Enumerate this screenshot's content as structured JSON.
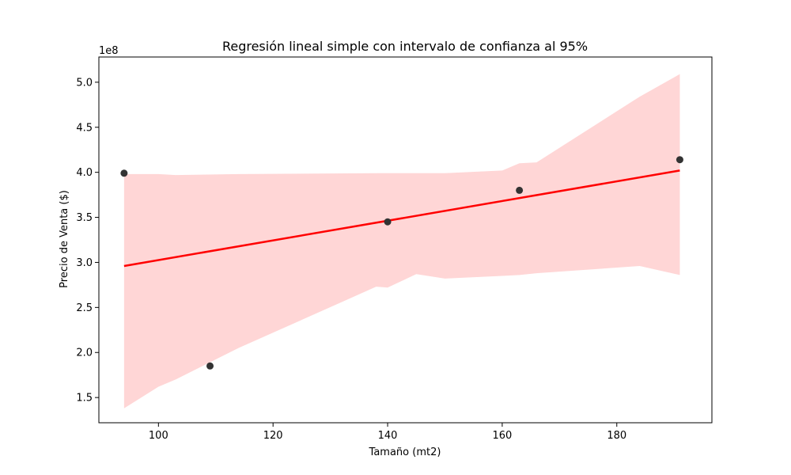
{
  "chart_data": {
    "type": "scatter",
    "title": "Regresión lineal simple con intervalo de confianza al 95%",
    "xlabel": "Tamaño (mt2)",
    "ylabel": "Precio de Venta ($)",
    "y_offset_label": "1e8",
    "xlim": [
      89.6,
      196.6
    ],
    "ylim": [
      1.22,
      5.28
    ],
    "x_ticks": [
      100,
      120,
      140,
      160,
      180
    ],
    "x_tick_labels": [
      "100",
      "120",
      "140",
      "160",
      "180"
    ],
    "y_ticks": [
      1.5,
      2.0,
      2.5,
      3.0,
      3.5,
      4.0,
      4.5,
      5.0
    ],
    "y_tick_labels": [
      "1.5",
      "2.0",
      "2.5",
      "3.0",
      "3.5",
      "4.0",
      "4.5",
      "5.0"
    ],
    "grid": false,
    "scatter_points": {
      "x": [
        94,
        109,
        140,
        163,
        191
      ],
      "y": [
        3.99,
        1.85,
        3.45,
        3.8,
        4.14
      ]
    },
    "regression_line": {
      "x": [
        94,
        191
      ],
      "y": [
        2.96,
        4.02
      ]
    },
    "confidence_band": {
      "x": [
        94,
        100,
        103,
        114,
        138,
        140,
        145,
        150,
        160,
        163,
        166,
        184,
        191
      ],
      "upper": [
        3.98,
        3.98,
        3.97,
        3.98,
        3.99,
        3.99,
        3.99,
        3.99,
        4.02,
        4.1,
        4.11,
        4.84,
        5.09
      ],
      "lower": [
        1.38,
        1.62,
        1.7,
        2.05,
        2.73,
        2.72,
        2.87,
        2.82,
        2.85,
        2.86,
        2.88,
        2.96,
        2.86
      ]
    },
    "colors": {
      "points": "#333333",
      "line": "#ff0000",
      "band": "#ffd6d6",
      "axes": "#000000"
    }
  }
}
